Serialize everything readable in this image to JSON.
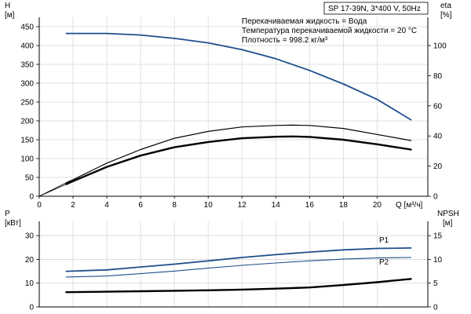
{
  "colors": {
    "blue": "#1f4e8c",
    "black": "#000000",
    "grid": "#d8d8d8"
  },
  "header": {
    "model": "SP 17-39N, 3*400 V, 50Hz",
    "info_lines": [
      "Перекачиваемая жидкость = Вода",
      "Температура перекачиваемой жидкости = 20 °C",
      "Плотность = 998.2 кг/м³"
    ]
  },
  "chart_data": [
    {
      "type": "line",
      "name": "performance",
      "x_label": "Q [м³/ч]",
      "xlim": [
        0,
        23
      ],
      "x_ticks": [
        0,
        2,
        4,
        6,
        8,
        10,
        12,
        14,
        16,
        18,
        20
      ],
      "left_axis": {
        "label": "H",
        "unit": "[м]",
        "lim": [
          0,
          475
        ],
        "ticks": [
          0,
          50,
          100,
          150,
          200,
          250,
          300,
          350,
          400,
          450
        ]
      },
      "right_axis": {
        "label": "eta",
        "unit": "[%]",
        "lim": [
          0,
          118.75
        ],
        "ticks": [
          0,
          20,
          40,
          60,
          80,
          100
        ]
      },
      "series": [
        {
          "axis": "left",
          "color": "blue",
          "width": 1.8,
          "points": [
            [
              1.6,
              432
            ],
            [
              4,
              432
            ],
            [
              6,
              428
            ],
            [
              8,
              419
            ],
            [
              10,
              407
            ],
            [
              12,
              389
            ],
            [
              14,
              365
            ],
            [
              16,
              334
            ],
            [
              18,
              298
            ],
            [
              20,
              257
            ],
            [
              22,
              203
            ]
          ]
        },
        {
          "axis": "right",
          "color": "black",
          "width": 1.2,
          "points": [
            [
              1.6,
              9
            ],
            [
              2,
              11
            ],
            [
              4,
              22
            ],
            [
              6,
              31
            ],
            [
              8,
              38.5
            ],
            [
              10,
              43
            ],
            [
              12,
              46
            ],
            [
              14,
              47
            ],
            [
              15,
              47.2
            ],
            [
              16,
              47
            ],
            [
              18,
              45
            ],
            [
              20,
              41
            ],
            [
              22,
              37
            ]
          ]
        },
        {
          "axis": "right",
          "color": "black",
          "width": 2.4,
          "points": [
            [
              1.6,
              8
            ],
            [
              2,
              10
            ],
            [
              4,
              19.5
            ],
            [
              6,
              27
            ],
            [
              8,
              32.5
            ],
            [
              10,
              36
            ],
            [
              12,
              38.5
            ],
            [
              14,
              39.5
            ],
            [
              15,
              39.7
            ],
            [
              16,
              39.4
            ],
            [
              18,
              37.5
            ],
            [
              20,
              34.5
            ],
            [
              22,
              31
            ]
          ]
        }
      ]
    },
    {
      "type": "line",
      "name": "power_npsh",
      "xlim": [
        0,
        23
      ],
      "x_ticks": [
        0,
        2,
        4,
        6,
        8,
        10,
        12,
        14,
        16,
        18,
        20
      ],
      "left_axis": {
        "label": "P",
        "unit": "[кВт]",
        "lim": [
          0,
          36
        ],
        "ticks": [
          0,
          10,
          20,
          30
        ]
      },
      "right_axis": {
        "label": "NPSH",
        "unit": "[м]",
        "lim": [
          0,
          18
        ],
        "ticks": [
          0,
          5,
          10,
          15
        ]
      },
      "series": [
        {
          "name": "P1",
          "axis": "left",
          "color": "blue",
          "width": 1.8,
          "points": [
            [
              1.6,
              15
            ],
            [
              4,
              15.6
            ],
            [
              6,
              16.8
            ],
            [
              8,
              18
            ],
            [
              10,
              19.4
            ],
            [
              12,
              20.8
            ],
            [
              14,
              22
            ],
            [
              16,
              23.1
            ],
            [
              18,
              24
            ],
            [
              20,
              24.6
            ],
            [
              22,
              24.8
            ]
          ]
        },
        {
          "name": "P2",
          "axis": "left",
          "color": "blue",
          "width": 1.1,
          "points": [
            [
              1.6,
              12.6
            ],
            [
              4,
              13
            ],
            [
              6,
              14
            ],
            [
              8,
              15.1
            ],
            [
              10,
              16.3
            ],
            [
              12,
              17.5
            ],
            [
              14,
              18.5
            ],
            [
              16,
              19.4
            ],
            [
              18,
              20.1
            ],
            [
              20,
              20.6
            ],
            [
              22,
              20.8
            ]
          ]
        },
        {
          "axis": "right",
          "color": "black",
          "width": 2.4,
          "points": [
            [
              1.6,
              3.1
            ],
            [
              4,
              3.2
            ],
            [
              6,
              3.3
            ],
            [
              8,
              3.4
            ],
            [
              10,
              3.5
            ],
            [
              12,
              3.65
            ],
            [
              14,
              3.85
            ],
            [
              16,
              4.1
            ],
            [
              18,
              4.6
            ],
            [
              20,
              5.2
            ],
            [
              22,
              5.9
            ]
          ]
        }
      ]
    }
  ]
}
